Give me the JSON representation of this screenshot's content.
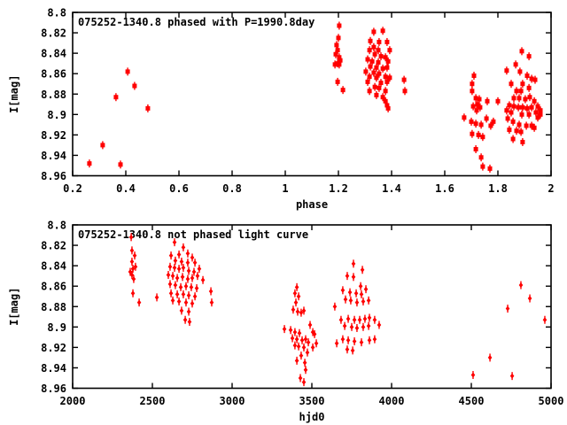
{
  "figure": {
    "background": "#ffffff",
    "text_color": "#000000",
    "accent_color": "#ff0000"
  },
  "chart_data": [
    {
      "type": "scatter",
      "panel": "top",
      "title": "075252-1340.8 phased with P=1990.8day",
      "xlabel": "phase",
      "ylabel": "I[mag]",
      "xlim": [
        0.2,
        2
      ],
      "ylim": [
        8.8,
        8.96
      ],
      "y_inverted": true,
      "grid": false,
      "legend": "none",
      "marker": "square",
      "errorbars": true,
      "color": "#ff0000",
      "xticks": [
        0.2,
        0.4,
        0.6,
        0.8,
        1,
        1.2,
        1.4,
        1.6,
        1.8,
        2
      ],
      "xtick_labels": [
        "0.2",
        "0.4",
        "0.6",
        "0.8",
        "1",
        "1.2",
        "1.4",
        "1.6",
        "1.8",
        "2"
      ],
      "yticks": [
        8.8,
        8.82,
        8.84,
        8.86,
        8.88,
        8.9,
        8.92,
        8.94,
        8.96
      ],
      "ytick_labels": [
        "8.8",
        "8.82",
        "8.84",
        "8.86",
        "8.88",
        "8.9",
        "8.92",
        "8.94",
        "8.96"
      ],
      "points": [
        [
          0.407,
          8.858
        ],
        [
          0.433,
          8.872
        ],
        [
          0.363,
          8.883
        ],
        [
          0.483,
          8.894
        ],
        [
          0.313,
          8.93
        ],
        [
          0.263,
          8.948
        ],
        [
          0.38,
          8.949
        ],
        [
          1.203,
          8.813
        ],
        [
          1.2,
          8.825
        ],
        [
          1.193,
          8.832
        ],
        [
          1.197,
          8.837
        ],
        [
          1.19,
          8.841
        ],
        [
          1.203,
          8.844
        ],
        [
          1.207,
          8.847
        ],
        [
          1.197,
          8.85
        ],
        [
          1.187,
          8.851
        ],
        [
          1.203,
          8.851
        ],
        [
          1.197,
          8.868
        ],
        [
          1.217,
          8.876
        ],
        [
          1.333,
          8.819
        ],
        [
          1.367,
          8.818
        ],
        [
          1.32,
          8.828
        ],
        [
          1.353,
          8.829
        ],
        [
          1.383,
          8.829
        ],
        [
          1.333,
          8.834
        ],
        [
          1.35,
          8.837
        ],
        [
          1.317,
          8.837
        ],
        [
          1.393,
          8.837
        ],
        [
          1.337,
          8.841
        ],
        [
          1.36,
          8.843
        ],
        [
          1.377,
          8.844
        ],
        [
          1.31,
          8.846
        ],
        [
          1.327,
          8.848
        ],
        [
          1.35,
          8.849
        ],
        [
          1.387,
          8.848
        ],
        [
          1.32,
          8.853
        ],
        [
          1.343,
          8.854
        ],
        [
          1.367,
          8.855
        ],
        [
          1.383,
          8.854
        ],
        [
          1.303,
          8.858
        ],
        [
          1.333,
          8.859
        ],
        [
          1.353,
          8.86
        ],
        [
          1.317,
          8.863
        ],
        [
          1.343,
          8.864
        ],
        [
          1.377,
          8.863
        ],
        [
          1.393,
          8.864
        ],
        [
          1.31,
          8.868
        ],
        [
          1.36,
          8.869
        ],
        [
          1.383,
          8.868
        ],
        [
          1.337,
          8.873
        ],
        [
          1.353,
          8.874
        ],
        [
          1.317,
          8.877
        ],
        [
          1.377,
          8.877
        ],
        [
          1.343,
          8.881
        ],
        [
          1.367,
          8.883
        ],
        [
          1.377,
          8.887
        ],
        [
          1.383,
          8.891
        ],
        [
          1.387,
          8.894
        ],
        [
          1.447,
          8.866
        ],
        [
          1.45,
          8.877
        ],
        [
          1.71,
          8.862
        ],
        [
          1.703,
          8.87
        ],
        [
          1.703,
          8.877
        ],
        [
          1.717,
          8.884
        ],
        [
          1.73,
          8.885
        ],
        [
          1.723,
          8.89
        ],
        [
          1.707,
          8.892
        ],
        [
          1.733,
          8.893
        ],
        [
          1.72,
          8.896
        ],
        [
          1.673,
          8.903
        ],
        [
          1.7,
          8.907
        ],
        [
          1.717,
          8.909
        ],
        [
          1.737,
          8.91
        ],
        [
          1.703,
          8.919
        ],
        [
          1.727,
          8.92
        ],
        [
          1.743,
          8.922
        ],
        [
          1.717,
          8.934
        ],
        [
          1.737,
          8.942
        ],
        [
          1.743,
          8.951
        ],
        [
          1.77,
          8.953
        ],
        [
          1.76,
          8.887
        ],
        [
          1.757,
          8.904
        ],
        [
          1.773,
          8.911
        ],
        [
          1.783,
          8.907
        ],
        [
          1.89,
          8.838
        ],
        [
          1.917,
          8.843
        ],
        [
          1.867,
          8.851
        ],
        [
          1.833,
          8.857
        ],
        [
          1.883,
          8.858
        ],
        [
          1.91,
          8.862
        ],
        [
          1.927,
          8.865
        ],
        [
          1.85,
          8.87
        ],
        [
          1.893,
          8.87
        ],
        [
          1.917,
          8.874
        ],
        [
          1.94,
          8.866
        ],
        [
          1.87,
          8.877
        ],
        [
          1.887,
          8.877
        ],
        [
          1.86,
          8.884
        ],
        [
          1.88,
          8.884
        ],
        [
          1.903,
          8.885
        ],
        [
          1.92,
          8.883
        ],
        [
          1.937,
          8.887
        ],
        [
          1.843,
          8.891
        ],
        [
          1.86,
          8.892
        ],
        [
          1.877,
          8.893
        ],
        [
          1.893,
          8.893
        ],
        [
          1.91,
          8.894
        ],
        [
          1.927,
          8.893
        ],
        [
          1.95,
          8.892
        ],
        [
          1.833,
          8.896
        ],
        [
          1.85,
          8.898
        ],
        [
          1.89,
          8.9
        ],
        [
          1.917,
          8.9
        ],
        [
          1.943,
          8.898
        ],
        [
          1.96,
          8.896
        ],
        [
          1.837,
          8.904
        ],
        [
          1.857,
          8.907
        ],
        [
          1.88,
          8.91
        ],
        [
          1.907,
          8.911
        ],
        [
          1.927,
          8.911
        ],
        [
          1.95,
          8.903
        ],
        [
          1.843,
          8.915
        ],
        [
          1.87,
          8.916
        ],
        [
          1.887,
          8.917
        ],
        [
          1.937,
          8.913
        ],
        [
          1.96,
          8.9
        ],
        [
          1.857,
          8.924
        ],
        [
          1.893,
          8.927
        ],
        [
          1.8,
          8.887
        ]
      ]
    },
    {
      "type": "scatter",
      "panel": "bottom",
      "title": "075252-1340.8 not phased light curve",
      "xlabel": "hjd0",
      "ylabel": "I[mag]",
      "xlim": [
        2000,
        5000
      ],
      "ylim": [
        8.8,
        8.96
      ],
      "y_inverted": true,
      "grid": false,
      "legend": "none",
      "marker": "diamond",
      "errorbars": true,
      "color": "#ff0000",
      "xticks": [
        2000,
        2500,
        3000,
        3500,
        4000,
        4500,
        5000
      ],
      "xtick_labels": [
        "2000",
        "2500",
        "3000",
        "3500",
        "4000",
        "4500",
        "5000"
      ],
      "yticks": [
        8.8,
        8.82,
        8.84,
        8.86,
        8.88,
        8.9,
        8.92,
        8.94,
        8.96
      ],
      "ytick_labels": [
        "8.8",
        "8.82",
        "8.84",
        "8.86",
        "8.88",
        "8.9",
        "8.92",
        "8.94",
        "8.96"
      ],
      "points": [
        [
          2367,
          8.812
        ],
        [
          2372,
          8.825
        ],
        [
          2389,
          8.83
        ],
        [
          2372,
          8.836
        ],
        [
          2394,
          8.841
        ],
        [
          2378,
          8.843
        ],
        [
          2361,
          8.846
        ],
        [
          2372,
          8.849
        ],
        [
          2383,
          8.853
        ],
        [
          2378,
          8.867
        ],
        [
          2417,
          8.876
        ],
        [
          2528,
          8.871
        ],
        [
          2639,
          8.817
        ],
        [
          2694,
          8.822
        ],
        [
          2722,
          8.828
        ],
        [
          2667,
          8.829
        ],
        [
          2750,
          8.832
        ],
        [
          2617,
          8.83
        ],
        [
          2644,
          8.835
        ],
        [
          2683,
          8.836
        ],
        [
          2722,
          8.837
        ],
        [
          2767,
          8.837
        ],
        [
          2611,
          8.841
        ],
        [
          2639,
          8.842
        ],
        [
          2667,
          8.843
        ],
        [
          2694,
          8.842
        ],
        [
          2728,
          8.845
        ],
        [
          2761,
          8.846
        ],
        [
          2794,
          8.843
        ],
        [
          2600,
          8.849
        ],
        [
          2628,
          8.85
        ],
        [
          2656,
          8.852
        ],
        [
          2689,
          8.851
        ],
        [
          2722,
          8.853
        ],
        [
          2750,
          8.852
        ],
        [
          2783,
          8.85
        ],
        [
          2817,
          8.854
        ],
        [
          2611,
          8.858
        ],
        [
          2644,
          8.859
        ],
        [
          2678,
          8.861
        ],
        [
          2711,
          8.86
        ],
        [
          2744,
          8.861
        ],
        [
          2778,
          8.862
        ],
        [
          2617,
          8.867
        ],
        [
          2656,
          8.868
        ],
        [
          2694,
          8.868
        ],
        [
          2728,
          8.869
        ],
        [
          2767,
          8.87
        ],
        [
          2628,
          8.874
        ],
        [
          2667,
          8.875
        ],
        [
          2711,
          8.876
        ],
        [
          2750,
          8.877
        ],
        [
          2683,
          8.884
        ],
        [
          2728,
          8.885
        ],
        [
          2706,
          8.893
        ],
        [
          2733,
          8.895
        ],
        [
          2867,
          8.865
        ],
        [
          2872,
          8.876
        ],
        [
          3406,
          8.861
        ],
        [
          3394,
          8.867
        ],
        [
          3417,
          8.87
        ],
        [
          3400,
          8.876
        ],
        [
          3383,
          8.883
        ],
        [
          3411,
          8.885
        ],
        [
          3433,
          8.886
        ],
        [
          3450,
          8.884
        ],
        [
          3328,
          8.902
        ],
        [
          3367,
          8.903
        ],
        [
          3394,
          8.905
        ],
        [
          3422,
          8.906
        ],
        [
          3378,
          8.911
        ],
        [
          3406,
          8.912
        ],
        [
          3439,
          8.913
        ],
        [
          3461,
          8.912
        ],
        [
          3394,
          8.918
        ],
        [
          3417,
          8.919
        ],
        [
          3450,
          8.92
        ],
        [
          3478,
          8.915
        ],
        [
          3506,
          8.905
        ],
        [
          3489,
          8.898
        ],
        [
          3517,
          8.907
        ],
        [
          3472,
          8.925
        ],
        [
          3433,
          8.928
        ],
        [
          3406,
          8.933
        ],
        [
          3456,
          8.935
        ],
        [
          3461,
          8.942
        ],
        [
          3428,
          8.95
        ],
        [
          3450,
          8.954
        ],
        [
          3506,
          8.92
        ],
        [
          3528,
          8.916
        ],
        [
          3761,
          8.838
        ],
        [
          3817,
          8.844
        ],
        [
          3722,
          8.85
        ],
        [
          3761,
          8.851
        ],
        [
          3806,
          8.86
        ],
        [
          3839,
          8.863
        ],
        [
          3694,
          8.864
        ],
        [
          3739,
          8.866
        ],
        [
          3778,
          8.867
        ],
        [
          3811,
          8.868
        ],
        [
          3711,
          8.873
        ],
        [
          3744,
          8.874
        ],
        [
          3783,
          8.876
        ],
        [
          3822,
          8.875
        ],
        [
          3856,
          8.874
        ],
        [
          3683,
          8.893
        ],
        [
          3728,
          8.892
        ],
        [
          3767,
          8.893
        ],
        [
          3800,
          8.893
        ],
        [
          3833,
          8.892
        ],
        [
          3861,
          8.891
        ],
        [
          3894,
          8.893
        ],
        [
          3706,
          8.899
        ],
        [
          3750,
          8.9
        ],
        [
          3783,
          8.901
        ],
        [
          3822,
          8.9
        ],
        [
          3856,
          8.899
        ],
        [
          3694,
          8.912
        ],
        [
          3728,
          8.913
        ],
        [
          3767,
          8.914
        ],
        [
          3656,
          8.916
        ],
        [
          3811,
          8.915
        ],
        [
          3861,
          8.913
        ],
        [
          3722,
          8.922
        ],
        [
          3756,
          8.923
        ],
        [
          3894,
          8.912
        ],
        [
          3922,
          8.898
        ],
        [
          3644,
          8.88
        ],
        [
          4811,
          8.859
        ],
        [
          4867,
          8.872
        ],
        [
          4728,
          8.882
        ],
        [
          4961,
          8.893
        ],
        [
          4617,
          8.93
        ],
        [
          4511,
          8.947
        ],
        [
          4756,
          8.948
        ]
      ]
    }
  ]
}
